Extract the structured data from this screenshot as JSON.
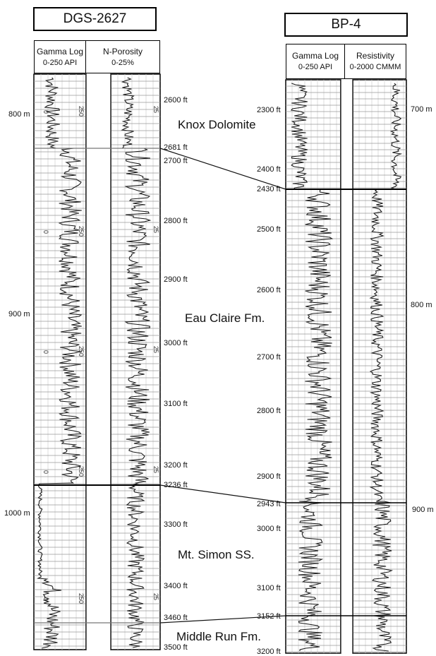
{
  "wells": {
    "left": {
      "name": "DGS-2627",
      "tracks": [
        {
          "title": "Gamma Log",
          "range": "0-250 API"
        },
        {
          "title": "N-Porosity",
          "range": "0-25%"
        }
      ],
      "scale_labels": [
        "0",
        "250",
        "25"
      ],
      "meters": [
        "800 m",
        "900 m",
        "1000 m"
      ],
      "feet": [
        "2600 ft",
        "2681 ft",
        "2700 ft",
        "2800 ft",
        "2900 ft",
        "3000 ft",
        "3100 ft",
        "3200 ft",
        "3236 ft",
        "3300 ft",
        "3400 ft",
        "3460 ft",
        "3500 ft"
      ]
    },
    "right": {
      "name": "BP-4",
      "tracks": [
        {
          "title": "Gamma Log",
          "range": "0-250 API"
        },
        {
          "title": "Resistivity",
          "range": "0-2000 CMMM"
        }
      ],
      "meters": [
        "700 m",
        "800 m",
        "900 m"
      ],
      "feet": [
        "2300 ft",
        "2400 ft",
        "2430 ft",
        "2500 ft",
        "2600 ft",
        "2700 ft",
        "2800 ft",
        "2900 ft",
        "2943 ft",
        "3000 ft",
        "3100 ft",
        "3152 ft",
        "3200 ft"
      ]
    }
  },
  "formations": [
    "Knox Dolomite",
    "Eau Claire Fm.",
    "Mt. Simon SS.",
    "Middle Run Fm."
  ],
  "colors": {
    "line": "#111111",
    "grid": "#9a9a9a",
    "grid_fine": "#cfcfcf",
    "trace": "#1a1a1a"
  }
}
